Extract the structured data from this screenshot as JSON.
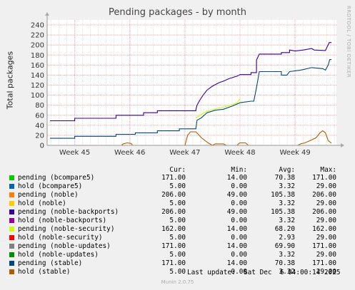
{
  "chart_data": {
    "type": "line",
    "title": "Pending packages - by month",
    "ylabel": "Total packages",
    "side_label": "RRDTOOL / TOBI OETIKER",
    "ylim": [
      0,
      250
    ],
    "yticks": [
      0,
      20,
      40,
      60,
      80,
      100,
      120,
      140,
      160,
      180,
      200,
      220,
      240
    ],
    "x_range": [
      44.5,
      49.75
    ],
    "xticks": [
      {
        "label": "Week 45",
        "value": 45
      },
      {
        "label": "Week 46",
        "value": 46
      },
      {
        "label": "Week 47",
        "value": 47
      },
      {
        "label": "Week 48",
        "value": 48
      },
      {
        "label": "Week 49",
        "value": 49
      }
    ],
    "grid": true,
    "series": [
      {
        "name": "pending (bcompare5)",
        "color": "#00cc00",
        "draw": false,
        "points": [
          [
            44.55,
            14
          ],
          [
            45.75,
            14
          ]
        ]
      },
      {
        "name": "hold (bcompare5)",
        "color": "#0066b3",
        "draw": false,
        "points": [
          [
            44.55,
            0
          ],
          [
            45.75,
            0
          ]
        ]
      },
      {
        "name": "pending (noble)",
        "color": "#ff8000",
        "draw": false,
        "points": [
          [
            44.55,
            49
          ],
          [
            45.75,
            49
          ]
        ]
      },
      {
        "name": "hold (noble)",
        "color": "#ffcc00",
        "draw": false,
        "points": [
          [
            44.55,
            0
          ],
          [
            45.75,
            0
          ]
        ]
      },
      {
        "name": "pending (noble-backports)",
        "color": "#330099",
        "draw": true,
        "points": [
          [
            44.55,
            49
          ],
          [
            45.0,
            49
          ],
          [
            45.0,
            54
          ],
          [
            45.75,
            54
          ],
          [
            45.75,
            60
          ],
          [
            46.25,
            60
          ],
          [
            46.25,
            65
          ],
          [
            46.5,
            65
          ],
          [
            46.5,
            69
          ],
          [
            47.2,
            69
          ],
          [
            47.2,
            72
          ],
          [
            47.22,
            80
          ],
          [
            47.27,
            90
          ],
          [
            47.33,
            100
          ],
          [
            47.4,
            110
          ],
          [
            47.5,
            118
          ],
          [
            47.62,
            125
          ],
          [
            47.7,
            128
          ],
          [
            47.8,
            133
          ],
          [
            47.95,
            138
          ],
          [
            48.0,
            141
          ],
          [
            48.2,
            141
          ],
          [
            48.2,
            145
          ],
          [
            48.3,
            145
          ],
          [
            48.3,
            170
          ],
          [
            48.35,
            182
          ],
          [
            48.75,
            182
          ],
          [
            48.75,
            185
          ],
          [
            48.9,
            185
          ],
          [
            48.9,
            190
          ],
          [
            49.0,
            188
          ],
          [
            49.15,
            190
          ],
          [
            49.3,
            193
          ],
          [
            49.35,
            190
          ],
          [
            49.55,
            189
          ],
          [
            49.58,
            196
          ],
          [
            49.62,
            205
          ],
          [
            49.66,
            205
          ]
        ]
      },
      {
        "name": "hold (noble-backports)",
        "color": "#990099",
        "draw": false,
        "points": [
          [
            44.55,
            0
          ],
          [
            45.75,
            0
          ]
        ]
      },
      {
        "name": "pending (noble-security)",
        "color": "#ccff00",
        "draw": true,
        "points": [
          [
            47.2,
            55
          ],
          [
            47.25,
            58
          ],
          [
            47.3,
            62
          ],
          [
            47.4,
            68
          ],
          [
            47.6,
            74
          ],
          [
            47.8,
            79
          ],
          [
            47.95,
            85
          ],
          [
            48.0,
            93
          ]
        ]
      },
      {
        "name": "hold (noble-security)",
        "color": "#ff0000",
        "draw": false,
        "points": [
          [
            44.55,
            0
          ],
          [
            45.75,
            0
          ]
        ]
      },
      {
        "name": "pending (noble-updates)",
        "color": "#808080",
        "draw": false,
        "points": [
          [
            44.55,
            14
          ],
          [
            45.75,
            14
          ]
        ]
      },
      {
        "name": "hold (noble-updates)",
        "color": "#008f00",
        "draw": false,
        "points": [
          [
            44.55,
            0
          ],
          [
            45.75,
            0
          ]
        ]
      },
      {
        "name": "pending (stable)",
        "color": "#00487d",
        "draw": true,
        "points": [
          [
            44.55,
            14
          ],
          [
            45.0,
            14
          ],
          [
            45.0,
            18
          ],
          [
            45.75,
            18
          ],
          [
            45.75,
            22
          ],
          [
            46.1,
            22
          ],
          [
            46.1,
            25
          ],
          [
            46.5,
            25
          ],
          [
            46.5,
            29
          ],
          [
            46.9,
            29
          ],
          [
            46.9,
            33
          ],
          [
            47.2,
            33
          ],
          [
            47.2,
            35
          ],
          [
            47.22,
            50
          ],
          [
            47.3,
            55
          ],
          [
            47.4,
            65
          ],
          [
            47.55,
            70
          ],
          [
            47.7,
            72
          ],
          [
            47.85,
            78
          ],
          [
            48.0,
            85
          ],
          [
            48.2,
            88
          ],
          [
            48.25,
            88
          ],
          [
            48.3,
            115
          ],
          [
            48.35,
            147
          ],
          [
            48.75,
            147
          ],
          [
            48.75,
            140
          ],
          [
            48.85,
            140
          ],
          [
            48.9,
            147
          ],
          [
            49.1,
            150
          ],
          [
            49.3,
            155
          ],
          [
            49.5,
            153
          ],
          [
            49.55,
            150
          ],
          [
            49.6,
            160
          ],
          [
            49.63,
            171
          ],
          [
            49.66,
            171
          ]
        ]
      },
      {
        "name": "hold (stable)",
        "color": "#b35a00",
        "draw": true,
        "points": [
          [
            44.55,
            0
          ],
          [
            45.85,
            0
          ],
          [
            45.88,
            3
          ],
          [
            45.95,
            5
          ],
          [
            46.02,
            4
          ],
          [
            46.05,
            0
          ],
          [
            47.0,
            0
          ],
          [
            47.05,
            20
          ],
          [
            47.1,
            27
          ],
          [
            47.2,
            27
          ],
          [
            47.3,
            15
          ],
          [
            47.42,
            5
          ],
          [
            47.5,
            0
          ],
          [
            47.55,
            3
          ],
          [
            47.7,
            3
          ],
          [
            47.75,
            0
          ],
          [
            47.95,
            0
          ],
          [
            47.98,
            4
          ],
          [
            48.0,
            5
          ],
          [
            48.1,
            5
          ],
          [
            48.15,
            0
          ],
          [
            49.05,
            0
          ],
          [
            49.1,
            3
          ],
          [
            49.18,
            5
          ],
          [
            49.28,
            10
          ],
          [
            49.38,
            15
          ],
          [
            49.45,
            25
          ],
          [
            49.5,
            29
          ],
          [
            49.55,
            25
          ],
          [
            49.6,
            10
          ],
          [
            49.65,
            5
          ],
          [
            49.66,
            5
          ]
        ]
      }
    ]
  },
  "legend": {
    "headers": {
      "cur": "Cur:",
      "min": "Min:",
      "avg": "Avg:",
      "max": "Max:"
    },
    "rows": [
      {
        "name": "pending (bcompare5)",
        "color": "#00cc00",
        "cur": "171.00",
        "min": "14.00",
        "avg": "70.38",
        "max": "171.00"
      },
      {
        "name": "hold (bcompare5)",
        "color": "#0066b3",
        "cur": "5.00",
        "min": "0.00",
        "avg": "3.32",
        "max": "29.00"
      },
      {
        "name": "pending (noble)",
        "color": "#ff8000",
        "cur": "206.00",
        "min": "49.00",
        "avg": "105.38",
        "max": "206.00"
      },
      {
        "name": "hold (noble)",
        "color": "#ffcc00",
        "cur": "5.00",
        "min": "0.00",
        "avg": "3.32",
        "max": "29.00"
      },
      {
        "name": "pending (noble-backports)",
        "color": "#330099",
        "cur": "206.00",
        "min": "49.00",
        "avg": "105.38",
        "max": "206.00"
      },
      {
        "name": "hold (noble-backports)",
        "color": "#990099",
        "cur": "5.00",
        "min": "0.00",
        "avg": "3.32",
        "max": "29.00"
      },
      {
        "name": "pending (noble-security)",
        "color": "#ccff00",
        "cur": "162.00",
        "min": "14.00",
        "avg": "68.20",
        "max": "162.00"
      },
      {
        "name": "hold (noble-security)",
        "color": "#ff0000",
        "cur": "5.00",
        "min": "0.00",
        "avg": "2.93",
        "max": "29.00"
      },
      {
        "name": "pending (noble-updates)",
        "color": "#808080",
        "cur": "171.00",
        "min": "14.00",
        "avg": "69.90",
        "max": "171.00"
      },
      {
        "name": "hold (noble-updates)",
        "color": "#008f00",
        "cur": "5.00",
        "min": "0.00",
        "avg": "3.32",
        "max": "29.00"
      },
      {
        "name": "pending (stable)",
        "color": "#00487d",
        "cur": "171.00",
        "min": "14.00",
        "avg": "70.38",
        "max": "171.00"
      },
      {
        "name": "hold (stable)",
        "color": "#b35a00",
        "cur": "5.00",
        "min": "0.00",
        "avg": "3.32",
        "max": "29.00"
      }
    ]
  },
  "last_update": "Last update:  Sat Dec  6 04:00:14 2025",
  "footer": "Munin 2.0.75"
}
